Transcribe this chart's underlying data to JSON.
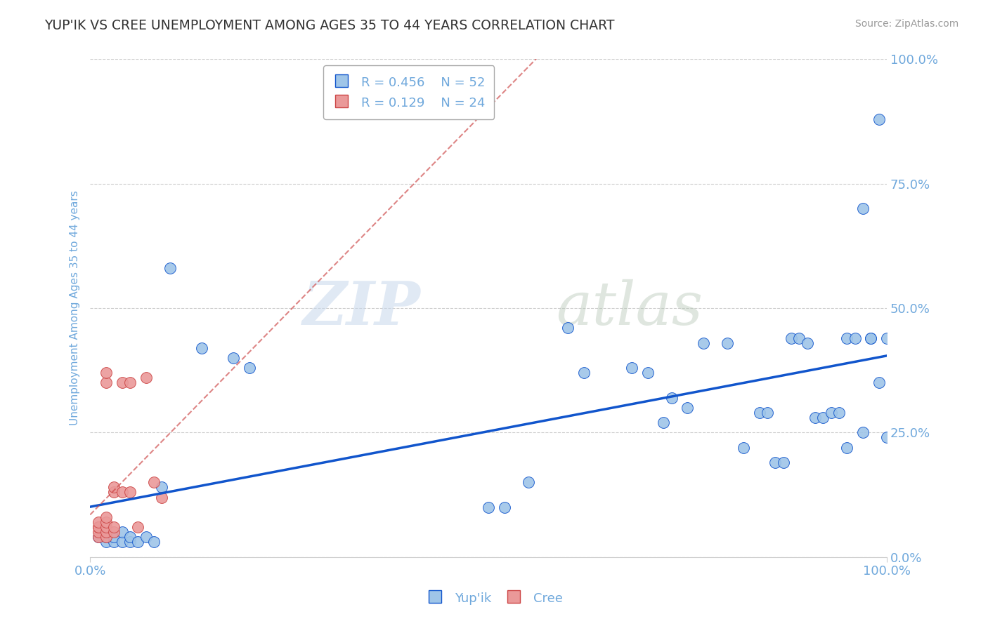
{
  "title": "YUP'IK VS CREE UNEMPLOYMENT AMONG AGES 35 TO 44 YEARS CORRELATION CHART",
  "source": "Source: ZipAtlas.com",
  "ylabel": "Unemployment Among Ages 35 to 44 years",
  "xlim": [
    0,
    1.0
  ],
  "ylim": [
    0,
    1.0
  ],
  "xtick_labels": [
    "0.0%",
    "100.0%"
  ],
  "ytick_labels": [
    "0.0%",
    "25.0%",
    "50.0%",
    "75.0%",
    "100.0%"
  ],
  "ytick_vals": [
    0.0,
    0.25,
    0.5,
    0.75,
    1.0
  ],
  "watermark_zip": "ZIP",
  "watermark_atlas": "atlas",
  "legend_r1": "R = 0.456",
  "legend_n1": "N = 52",
  "legend_r2": "R = 0.129",
  "legend_n2": "N = 24",
  "blue_color": "#9fc5e8",
  "pink_color": "#ea9999",
  "blue_line_color": "#1155cc",
  "pink_line_color": "#cc4444",
  "title_color": "#333333",
  "axis_label_color": "#6fa8dc",
  "grid_color": "#cccccc",
  "background_color": "#ffffff",
  "yup_x": [
    0.01,
    0.02,
    0.02,
    0.03,
    0.03,
    0.04,
    0.04,
    0.05,
    0.05,
    0.06,
    0.07,
    0.08,
    0.09,
    0.1,
    0.14,
    0.18,
    0.2,
    0.5,
    0.52,
    0.55,
    0.6,
    0.62,
    0.68,
    0.7,
    0.72,
    0.73,
    0.75,
    0.77,
    0.8,
    0.82,
    0.84,
    0.85,
    0.86,
    0.87,
    0.88,
    0.89,
    0.9,
    0.91,
    0.92,
    0.93,
    0.94,
    0.95,
    0.95,
    0.96,
    0.97,
    0.98,
    0.98,
    0.99,
    1.0,
    1.0,
    0.99,
    0.97
  ],
  "yup_y": [
    0.04,
    0.03,
    0.04,
    0.03,
    0.04,
    0.03,
    0.05,
    0.03,
    0.04,
    0.03,
    0.04,
    0.03,
    0.14,
    0.58,
    0.42,
    0.4,
    0.38,
    0.1,
    0.1,
    0.15,
    0.46,
    0.37,
    0.38,
    0.37,
    0.27,
    0.32,
    0.3,
    0.43,
    0.43,
    0.22,
    0.29,
    0.29,
    0.19,
    0.19,
    0.44,
    0.44,
    0.43,
    0.28,
    0.28,
    0.29,
    0.29,
    0.22,
    0.44,
    0.44,
    0.25,
    0.44,
    0.44,
    0.35,
    0.24,
    0.44,
    0.88,
    0.7
  ],
  "cree_x": [
    0.01,
    0.01,
    0.01,
    0.01,
    0.01,
    0.02,
    0.02,
    0.02,
    0.02,
    0.02,
    0.02,
    0.02,
    0.03,
    0.03,
    0.03,
    0.03,
    0.04,
    0.04,
    0.05,
    0.05,
    0.06,
    0.07,
    0.08,
    0.09
  ],
  "cree_y": [
    0.04,
    0.05,
    0.06,
    0.06,
    0.07,
    0.04,
    0.05,
    0.06,
    0.07,
    0.08,
    0.35,
    0.37,
    0.05,
    0.06,
    0.13,
    0.14,
    0.13,
    0.35,
    0.13,
    0.35,
    0.06,
    0.36,
    0.15,
    0.12
  ]
}
